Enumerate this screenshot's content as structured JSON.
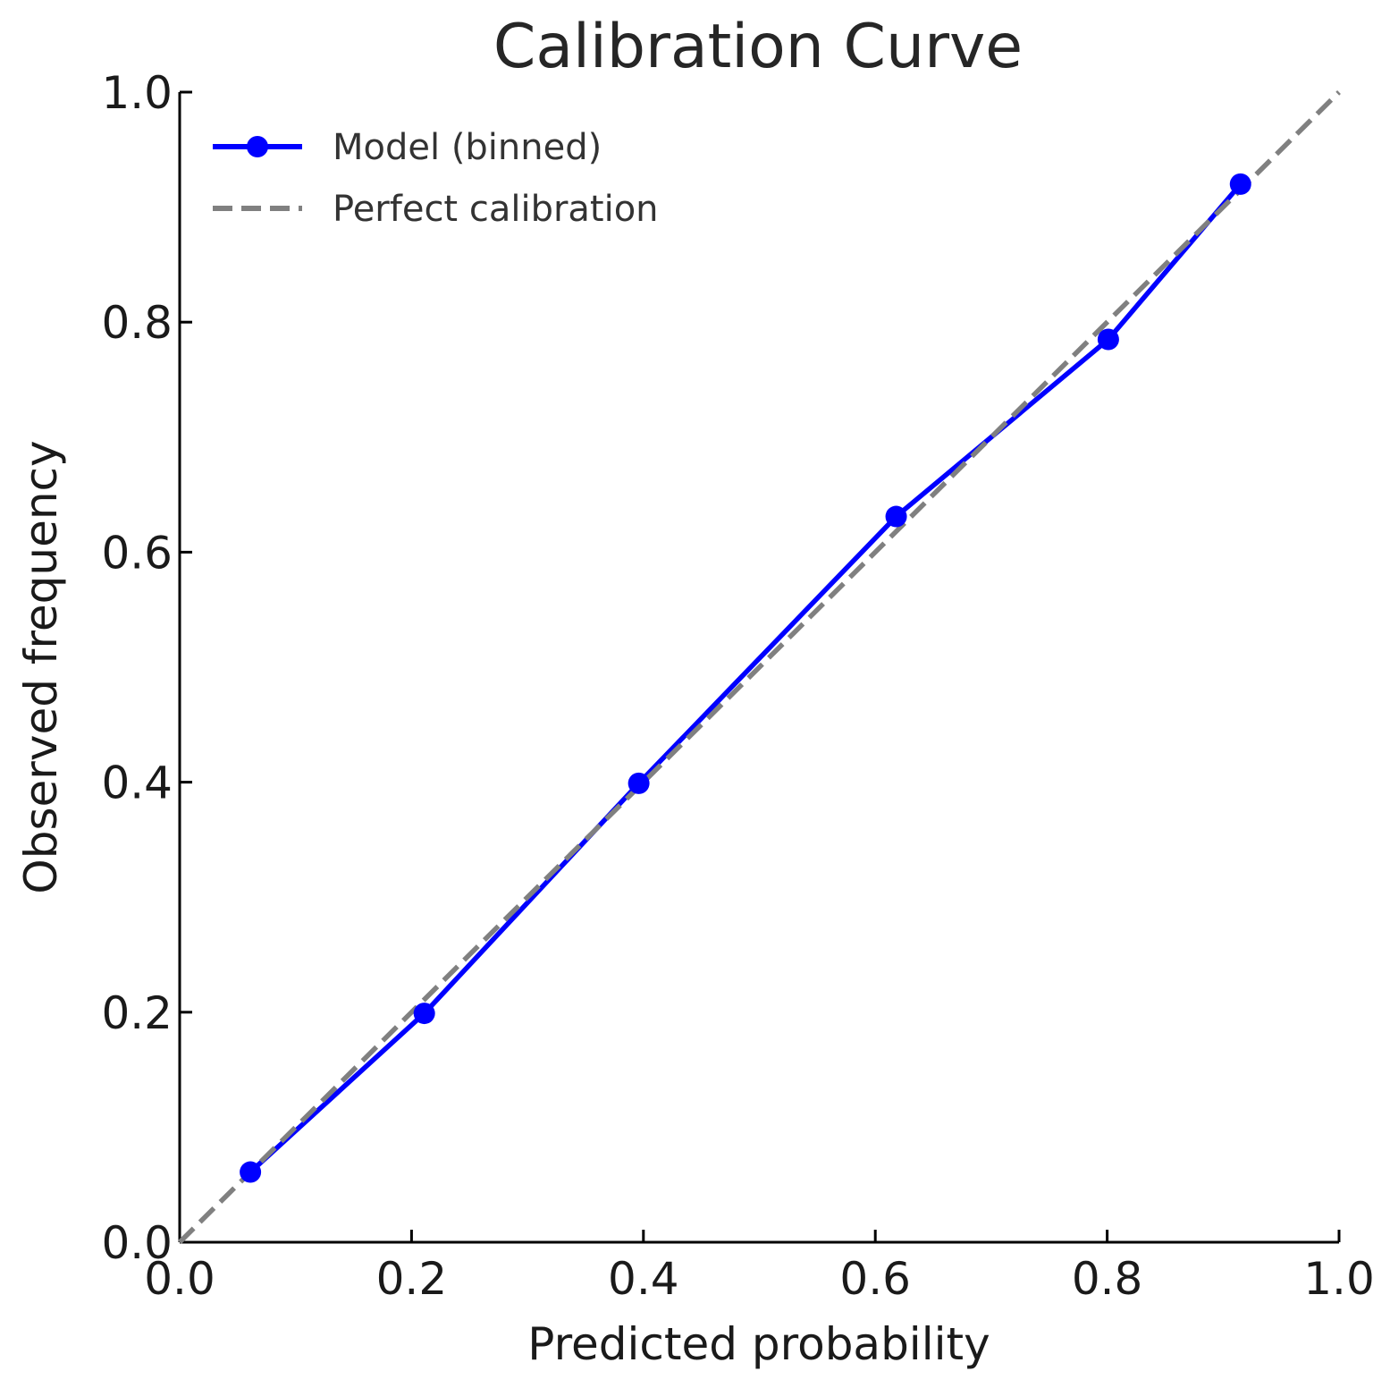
{
  "chart_data": {
    "type": "line",
    "title": "Calibration Curve",
    "xlabel": "Predicted probability",
    "ylabel": "Observed frequency",
    "xlim": [
      0.0,
      1.0
    ],
    "ylim": [
      0.0,
      1.0
    ],
    "xticks": [
      "0.0",
      "0.2",
      "0.4",
      "0.6",
      "0.8",
      "1.0"
    ],
    "yticks": [
      "0.0",
      "0.2",
      "0.4",
      "0.6",
      "0.8",
      "1.0"
    ],
    "grid": false,
    "legend_position": "top-left",
    "series": [
      {
        "name": "Model (binned)",
        "color": "#0000ff",
        "marker": "circle",
        "line_style": "solid",
        "x": [
          0.061,
          0.211,
          0.396,
          0.618,
          0.801,
          0.915
        ],
        "y": [
          0.061,
          0.199,
          0.399,
          0.631,
          0.785,
          0.92
        ]
      },
      {
        "name": "Perfect calibration",
        "color": "#808080",
        "line_style": "dashed",
        "x": [
          0.0,
          1.0
        ],
        "y": [
          0.0,
          1.0
        ]
      }
    ]
  }
}
